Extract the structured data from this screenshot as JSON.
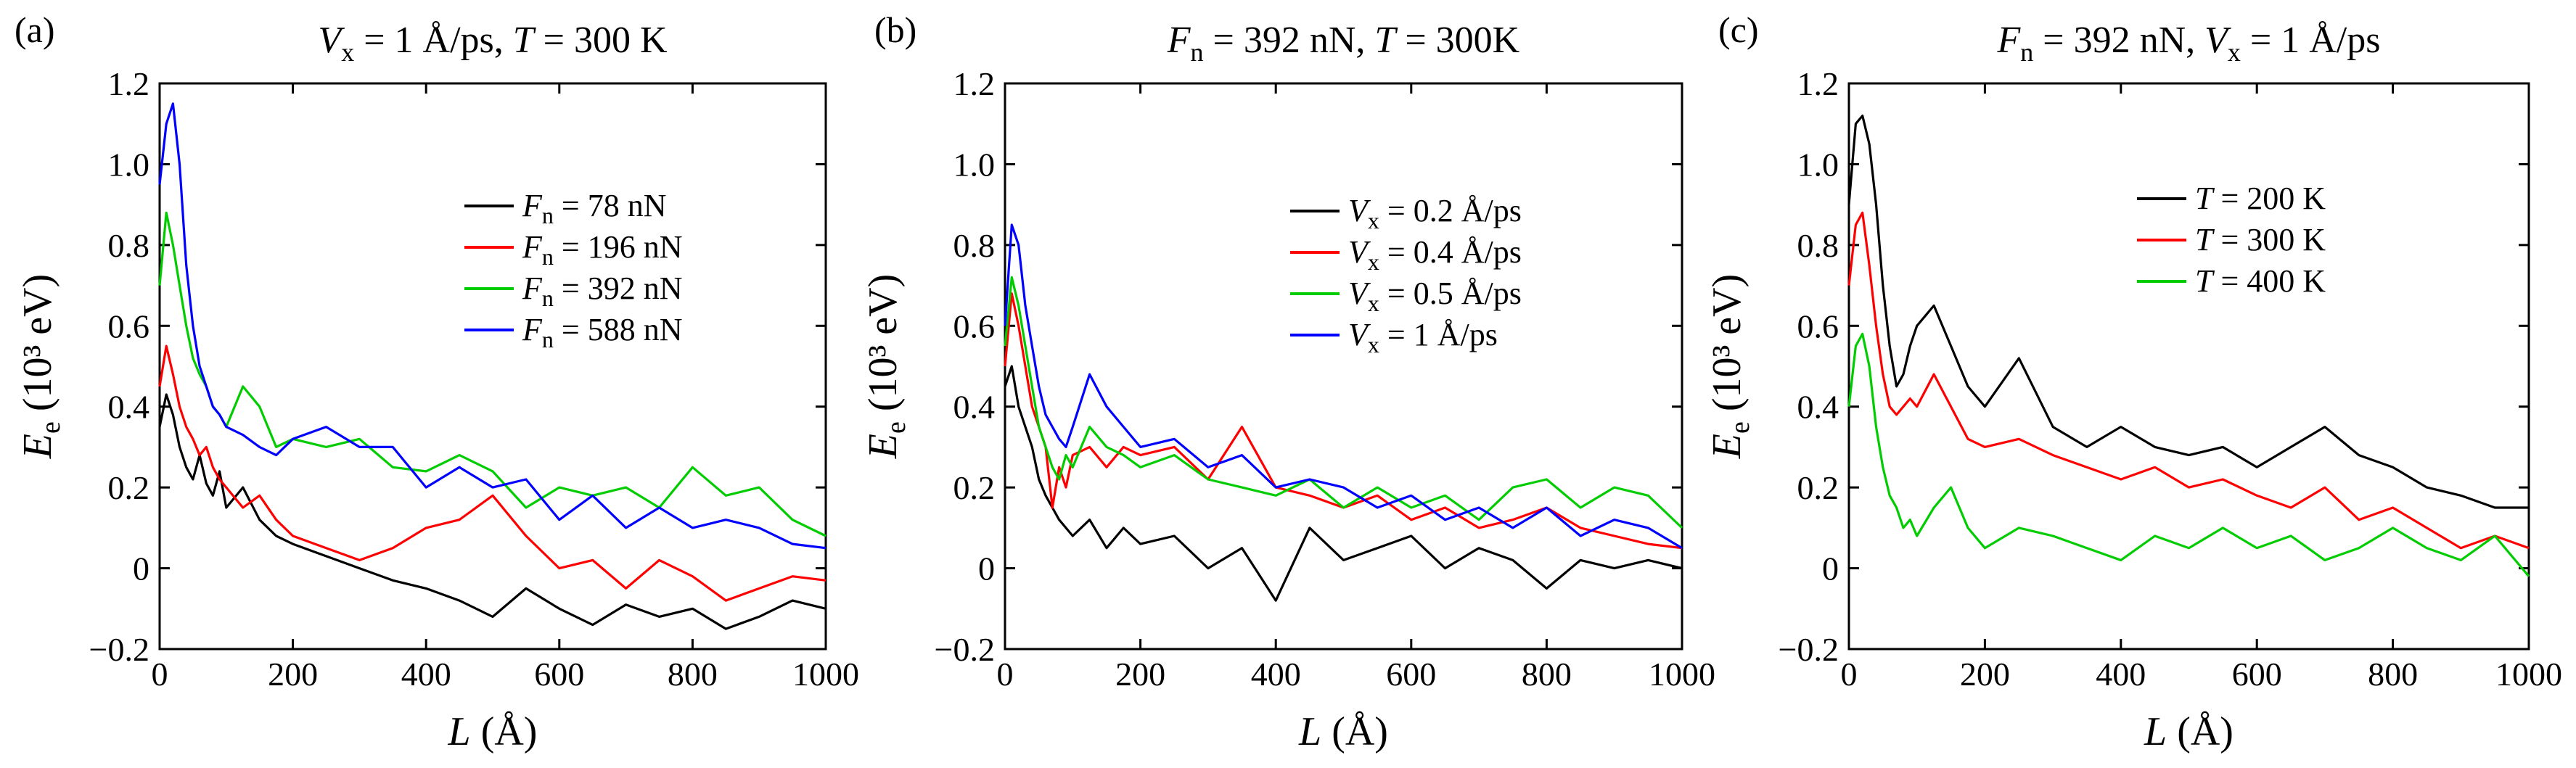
{
  "figure": {
    "panels": [
      {
        "label": "(a)",
        "title": "Vₓ = 1 Å/ps, T = 300 K",
        "title_parts": [
          {
            "t": "V",
            "style": "italic"
          },
          {
            "t": "x",
            "style": "sub"
          },
          {
            "t": " = 1 Å/ps, "
          },
          {
            "t": "T",
            "style": "italic"
          },
          {
            "t": " = 300 K"
          }
        ]
      },
      {
        "label": "(b)",
        "title": "Fₙ = 392 nN, T = 300K",
        "title_parts": [
          {
            "t": "F",
            "style": "italic"
          },
          {
            "t": "n",
            "style": "sub"
          },
          {
            "t": " = 392 nN, "
          },
          {
            "t": "T",
            "style": "italic"
          },
          {
            "t": " = 300K"
          }
        ]
      },
      {
        "label": "(c)",
        "title": "Fₙ = 392 nN, Vₓ = 1 Å/ps",
        "title_parts": [
          {
            "t": "F",
            "style": "italic"
          },
          {
            "t": "n",
            "style": "sub"
          },
          {
            "t": " = 392 nN, "
          },
          {
            "t": "V",
            "style": "italic"
          },
          {
            "t": "x",
            "style": "sub"
          },
          {
            "t": " = 1 Å/ps"
          }
        ]
      }
    ],
    "ylabel_main": "E",
    "ylabel_sub": "e",
    "ylabel_unit": " (10³ eV)",
    "xlabel_main": "L",
    "xlabel_unit": " (Å)"
  },
  "chart_data": [
    {
      "type": "line",
      "title": "(a) Vₓ = 1 Å/ps, T = 300 K",
      "xlabel": "L (Å)",
      "ylabel": "Eₑ (10³ eV)",
      "xlim": [
        0,
        1000
      ],
      "ylim": [
        -0.2,
        1.2
      ],
      "xticks": [
        0,
        200,
        400,
        600,
        800,
        1000
      ],
      "yticks": [
        -0.2,
        0,
        0.2,
        0.4,
        0.6,
        0.8,
        1.0,
        1.2
      ],
      "ytick_labels": [
        "−0.2",
        "0",
        "0.2",
        "0.4",
        "0.6",
        "0.8",
        "1.0",
        "1.2"
      ],
      "legend_position": "center-right",
      "series": [
        {
          "name": "Fn = 78 nN",
          "legend_sym": "F",
          "legend_sub": "n",
          "legend_val": " = 78 nN",
          "color": "#000000",
          "x": [
            0,
            10,
            20,
            30,
            40,
            50,
            60,
            70,
            80,
            90,
            100,
            125,
            150,
            175,
            200,
            250,
            300,
            350,
            400,
            450,
            500,
            550,
            600,
            650,
            700,
            750,
            800,
            850,
            900,
            950,
            1000
          ],
          "y": [
            0.35,
            0.43,
            0.38,
            0.3,
            0.25,
            0.22,
            0.28,
            0.21,
            0.18,
            0.24,
            0.15,
            0.2,
            0.12,
            0.08,
            0.06,
            0.03,
            0.0,
            -0.03,
            -0.05,
            -0.08,
            -0.12,
            -0.05,
            -0.1,
            -0.14,
            -0.09,
            -0.12,
            -0.1,
            -0.15,
            -0.12,
            -0.08,
            -0.1
          ]
        },
        {
          "name": "Fn = 196 nN",
          "legend_sym": "F",
          "legend_sub": "n",
          "legend_val": " = 196 nN",
          "color": "#ff0000",
          "x": [
            0,
            10,
            20,
            30,
            40,
            50,
            60,
            70,
            80,
            90,
            100,
            125,
            150,
            175,
            200,
            250,
            300,
            350,
            400,
            450,
            500,
            550,
            600,
            650,
            700,
            750,
            800,
            850,
            900,
            950,
            1000
          ],
          "y": [
            0.45,
            0.55,
            0.48,
            0.4,
            0.35,
            0.32,
            0.28,
            0.3,
            0.25,
            0.22,
            0.2,
            0.15,
            0.18,
            0.12,
            0.08,
            0.05,
            0.02,
            0.05,
            0.1,
            0.12,
            0.18,
            0.08,
            0.0,
            0.02,
            -0.05,
            0.02,
            -0.02,
            -0.08,
            -0.05,
            -0.02,
            -0.03
          ]
        },
        {
          "name": "Fn = 392 nN",
          "legend_sym": "F",
          "legend_sub": "n",
          "legend_val": " = 392 nN",
          "color": "#00cc00",
          "x": [
            0,
            10,
            20,
            30,
            40,
            50,
            60,
            70,
            80,
            90,
            100,
            125,
            150,
            175,
            200,
            250,
            300,
            350,
            400,
            450,
            500,
            550,
            600,
            650,
            700,
            750,
            800,
            850,
            900,
            950,
            1000
          ],
          "y": [
            0.7,
            0.88,
            0.8,
            0.7,
            0.6,
            0.52,
            0.48,
            0.45,
            0.4,
            0.38,
            0.35,
            0.45,
            0.4,
            0.3,
            0.32,
            0.3,
            0.32,
            0.25,
            0.24,
            0.28,
            0.24,
            0.15,
            0.2,
            0.18,
            0.2,
            0.15,
            0.25,
            0.18,
            0.2,
            0.12,
            0.08
          ]
        },
        {
          "name": "Fn = 588 nN",
          "legend_sym": "F",
          "legend_sub": "n",
          "legend_val": " = 588 nN",
          "color": "#0000ff",
          "x": [
            0,
            10,
            20,
            30,
            40,
            50,
            60,
            70,
            80,
            90,
            100,
            125,
            150,
            175,
            200,
            250,
            300,
            350,
            400,
            450,
            500,
            550,
            600,
            650,
            700,
            750,
            800,
            850,
            900,
            950,
            1000
          ],
          "y": [
            0.95,
            1.1,
            1.15,
            1.0,
            0.75,
            0.6,
            0.5,
            0.45,
            0.4,
            0.38,
            0.35,
            0.33,
            0.3,
            0.28,
            0.32,
            0.35,
            0.3,
            0.3,
            0.2,
            0.25,
            0.2,
            0.22,
            0.12,
            0.18,
            0.1,
            0.15,
            0.1,
            0.12,
            0.1,
            0.06,
            0.05
          ]
        }
      ]
    },
    {
      "type": "line",
      "title": "(b) Fₙ = 392 nN, T = 300K",
      "xlabel": "L (Å)",
      "ylabel": "Eₑ (10³ eV)",
      "xlim": [
        0,
        1000
      ],
      "ylim": [
        -0.2,
        1.2
      ],
      "xticks": [
        0,
        200,
        400,
        600,
        800,
        1000
      ],
      "yticks": [
        -0.2,
        0,
        0.2,
        0.4,
        0.6,
        0.8,
        1.0,
        1.2
      ],
      "ytick_labels": [
        "−0.2",
        "0",
        "0.2",
        "0.4",
        "0.6",
        "0.8",
        "1.0",
        "1.2"
      ],
      "legend_position": "center-right",
      "series": [
        {
          "name": "Vx = 0.2 Å/ps",
          "legend_sym": "V",
          "legend_sub": "x",
          "legend_val": " = 0.2 Å/ps",
          "color": "#000000",
          "x": [
            0,
            10,
            20,
            30,
            40,
            50,
            60,
            70,
            80,
            90,
            100,
            125,
            150,
            175,
            200,
            250,
            300,
            350,
            400,
            450,
            500,
            550,
            600,
            650,
            700,
            750,
            800,
            850,
            900,
            950,
            1000
          ],
          "y": [
            0.45,
            0.5,
            0.4,
            0.35,
            0.3,
            0.22,
            0.18,
            0.15,
            0.12,
            0.1,
            0.08,
            0.12,
            0.05,
            0.1,
            0.06,
            0.08,
            0.0,
            0.05,
            -0.08,
            0.1,
            0.02,
            0.05,
            0.08,
            0.0,
            0.05,
            0.02,
            -0.05,
            0.02,
            0.0,
            0.02,
            0.0
          ]
        },
        {
          "name": "Vx = 0.4 Å/ps",
          "legend_sym": "V",
          "legend_sub": "x",
          "legend_val": " = 0.4 Å/ps",
          "color": "#ff0000",
          "x": [
            0,
            10,
            20,
            30,
            40,
            50,
            60,
            70,
            80,
            90,
            100,
            125,
            150,
            175,
            200,
            250,
            300,
            350,
            400,
            450,
            500,
            550,
            600,
            650,
            700,
            750,
            800,
            850,
            900,
            950,
            1000
          ],
          "y": [
            0.5,
            0.68,
            0.6,
            0.5,
            0.4,
            0.35,
            0.3,
            0.15,
            0.25,
            0.2,
            0.28,
            0.3,
            0.25,
            0.3,
            0.28,
            0.3,
            0.22,
            0.35,
            0.2,
            0.18,
            0.15,
            0.18,
            0.12,
            0.15,
            0.1,
            0.12,
            0.15,
            0.1,
            0.08,
            0.06,
            0.05
          ]
        },
        {
          "name": "Vx = 0.5 Å/ps",
          "legend_sym": "V",
          "legend_sub": "x",
          "legend_val": " = 0.5 Å/ps",
          "color": "#00cc00",
          "x": [
            0,
            10,
            20,
            30,
            40,
            50,
            60,
            70,
            80,
            90,
            100,
            125,
            150,
            175,
            200,
            250,
            300,
            350,
            400,
            450,
            500,
            550,
            600,
            650,
            700,
            750,
            800,
            850,
            900,
            950,
            1000
          ],
          "y": [
            0.55,
            0.72,
            0.65,
            0.55,
            0.45,
            0.35,
            0.3,
            0.25,
            0.22,
            0.28,
            0.25,
            0.35,
            0.3,
            0.28,
            0.25,
            0.28,
            0.22,
            0.2,
            0.18,
            0.22,
            0.15,
            0.2,
            0.15,
            0.18,
            0.12,
            0.2,
            0.22,
            0.15,
            0.2,
            0.18,
            0.1
          ]
        },
        {
          "name": "Vx = 1 Å/ps",
          "legend_sym": "V",
          "legend_sub": "x",
          "legend_val": " = 1 Å/ps",
          "color": "#0000ff",
          "x": [
            0,
            10,
            20,
            30,
            40,
            50,
            60,
            70,
            80,
            90,
            100,
            125,
            150,
            175,
            200,
            250,
            300,
            350,
            400,
            450,
            500,
            550,
            600,
            650,
            700,
            750,
            800,
            850,
            900,
            950,
            1000
          ],
          "y": [
            0.6,
            0.85,
            0.8,
            0.65,
            0.55,
            0.45,
            0.38,
            0.35,
            0.32,
            0.3,
            0.35,
            0.48,
            0.4,
            0.35,
            0.3,
            0.32,
            0.25,
            0.28,
            0.2,
            0.22,
            0.2,
            0.15,
            0.18,
            0.12,
            0.15,
            0.1,
            0.15,
            0.08,
            0.12,
            0.1,
            0.05
          ]
        }
      ]
    },
    {
      "type": "line",
      "title": "(c) Fₙ = 392 nN, Vₓ = 1 Å/ps",
      "xlabel": "L (Å)",
      "ylabel": "Eₑ (10³ eV)",
      "xlim": [
        0,
        1000
      ],
      "ylim": [
        -0.2,
        1.2
      ],
      "xticks": [
        0,
        200,
        400,
        600,
        800,
        1000
      ],
      "yticks": [
        -0.2,
        0,
        0.2,
        0.4,
        0.6,
        0.8,
        1.0,
        1.2
      ],
      "ytick_labels": [
        "−0.2",
        "0",
        "0.2",
        "0.4",
        "0.6",
        "0.8",
        "1.0",
        "1.2"
      ],
      "legend_position": "top-right",
      "series": [
        {
          "name": "T = 200 K",
          "legend_sym": "T",
          "legend_sub": "",
          "legend_val": " = 200 K",
          "color": "#000000",
          "x": [
            0,
            10,
            20,
            30,
            40,
            50,
            60,
            70,
            80,
            90,
            100,
            125,
            150,
            175,
            200,
            250,
            300,
            350,
            400,
            450,
            500,
            550,
            600,
            650,
            700,
            750,
            800,
            850,
            900,
            950,
            1000
          ],
          "y": [
            0.9,
            1.1,
            1.12,
            1.05,
            0.9,
            0.7,
            0.55,
            0.45,
            0.48,
            0.55,
            0.6,
            0.65,
            0.55,
            0.45,
            0.4,
            0.52,
            0.35,
            0.3,
            0.35,
            0.3,
            0.28,
            0.3,
            0.25,
            0.3,
            0.35,
            0.28,
            0.25,
            0.2,
            0.18,
            0.15,
            0.15
          ]
        },
        {
          "name": "T = 300 K",
          "legend_sym": "T",
          "legend_sub": "",
          "legend_val": " = 300 K",
          "color": "#ff0000",
          "x": [
            0,
            10,
            20,
            30,
            40,
            50,
            60,
            70,
            80,
            90,
            100,
            125,
            150,
            175,
            200,
            250,
            300,
            350,
            400,
            450,
            500,
            550,
            600,
            650,
            700,
            750,
            800,
            850,
            900,
            950,
            1000
          ],
          "y": [
            0.7,
            0.85,
            0.88,
            0.75,
            0.6,
            0.48,
            0.4,
            0.38,
            0.4,
            0.42,
            0.4,
            0.48,
            0.4,
            0.32,
            0.3,
            0.32,
            0.28,
            0.25,
            0.22,
            0.25,
            0.2,
            0.22,
            0.18,
            0.15,
            0.2,
            0.12,
            0.15,
            0.1,
            0.05,
            0.08,
            0.05
          ]
        },
        {
          "name": "T = 400 K",
          "legend_sym": "T",
          "legend_sub": "",
          "legend_val": " = 400 K",
          "color": "#00cc00",
          "x": [
            0,
            10,
            20,
            30,
            40,
            50,
            60,
            70,
            80,
            90,
            100,
            125,
            150,
            175,
            200,
            250,
            300,
            350,
            400,
            450,
            500,
            550,
            600,
            650,
            700,
            750,
            800,
            850,
            900,
            950,
            1000
          ],
          "y": [
            0.4,
            0.55,
            0.58,
            0.5,
            0.35,
            0.25,
            0.18,
            0.15,
            0.1,
            0.12,
            0.08,
            0.15,
            0.2,
            0.1,
            0.05,
            0.1,
            0.08,
            0.05,
            0.02,
            0.08,
            0.05,
            0.1,
            0.05,
            0.08,
            0.02,
            0.05,
            0.1,
            0.05,
            0.02,
            0.08,
            -0.02
          ]
        }
      ]
    }
  ]
}
